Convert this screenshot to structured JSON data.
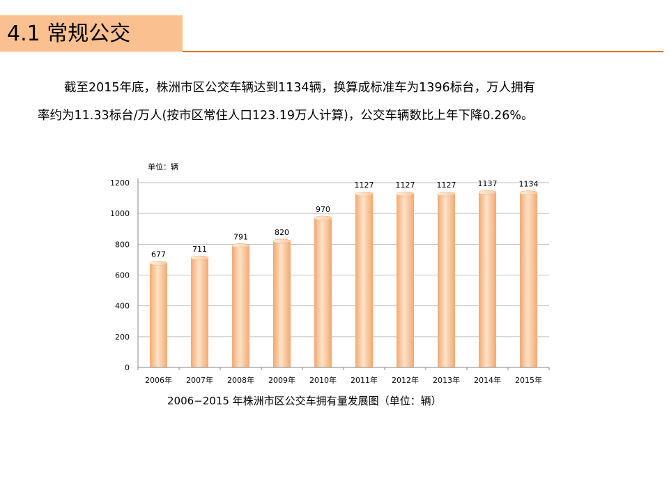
{
  "header": {
    "title": "4.1 常规公交"
  },
  "paragraph": {
    "line1": "截至2015年底，株洲市区公交车辆达到1134辆，换算成标准车为1396标台，万人拥有",
    "line2": "率约为11.33标台/万人(按市区常住人口123.19万人计算)，公交车辆数比上年下降0.26%。"
  },
  "colors": {
    "title_band": "#fac090",
    "title_rule": "#e46c0a",
    "bar_light": "#fde3c9",
    "bar_dark": "#f7b37d",
    "gridline": "#bfbfbf"
  },
  "chart_data": {
    "type": "bar",
    "unit_label": "单位：辆",
    "caption": "2006−2015 年株洲市区公交车拥有量发展图（单位：辆）",
    "categories": [
      "2006年",
      "2007年",
      "2008年",
      "2009年",
      "2010年",
      "2011年",
      "2012年",
      "2013年",
      "2014年",
      "2015年"
    ],
    "values": [
      677,
      711,
      791,
      820,
      970,
      1127,
      1127,
      1127,
      1137,
      1134
    ],
    "ylim": [
      0,
      1200
    ],
    "yticks": [
      0,
      200,
      400,
      600,
      800,
      1000,
      1200
    ],
    "grid": true,
    "legend": "none"
  }
}
